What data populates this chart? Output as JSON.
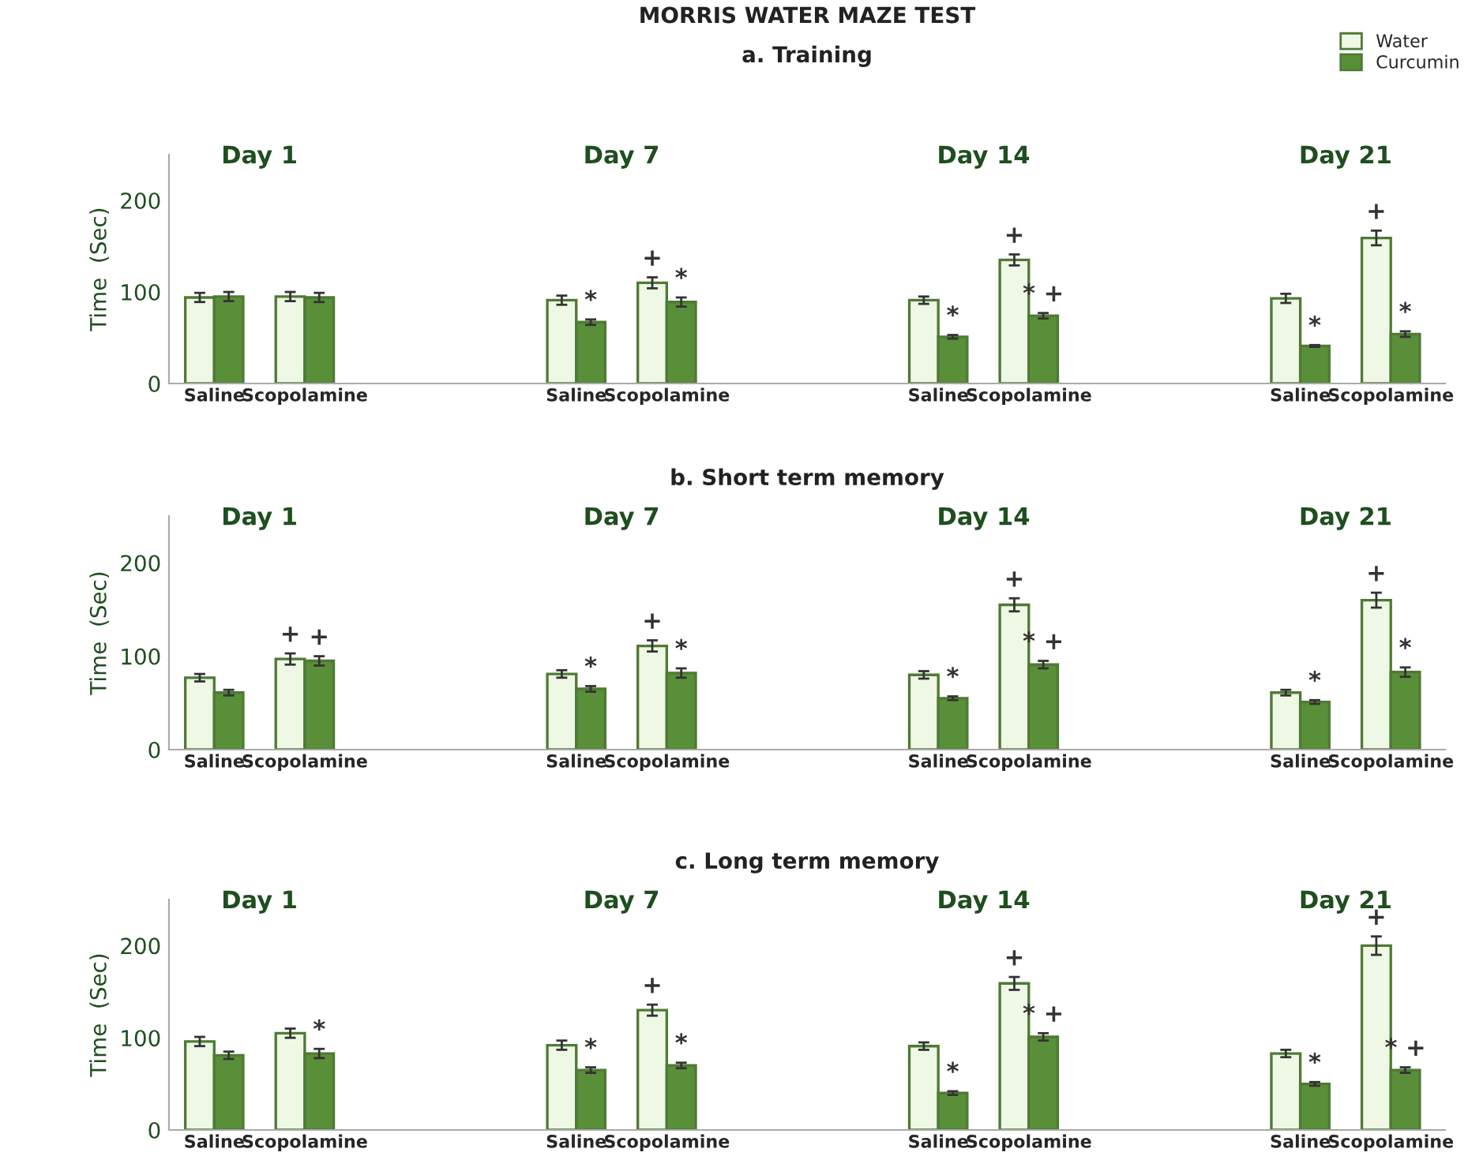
{
  "chart_data": [
    {
      "type": "bar",
      "title": "MORRIS WATER MAZE TEST",
      "subtitle": "a. Training",
      "ylabel": "Time  (Sec)",
      "legend": "top right",
      "ylim": [
        0,
        250
      ],
      "yticks": [
        0,
        100,
        200
      ],
      "categories": [
        "Saline",
        "Scopolamine",
        null,
        null,
        "Saline",
        "Scopolamine",
        null,
        null,
        "Saline",
        "Scopolamine",
        null,
        null,
        "Saline",
        "Scopolamine"
      ],
      "series": [
        {
          "name": "Water",
          "color": "#eef8e4",
          "values": [
            94,
            95,
            null,
            null,
            91,
            110,
            null,
            null,
            91,
            135,
            null,
            null,
            93,
            159
          ],
          "errors": [
            5,
            5,
            null,
            null,
            5,
            6,
            null,
            null,
            4,
            6,
            null,
            null,
            5,
            8
          ],
          "value_labels": [
            null,
            null,
            null,
            null,
            null,
            "+",
            null,
            null,
            null,
            "+",
            null,
            null,
            null,
            "+"
          ]
        },
        {
          "name": "Curcumin",
          "color": "#5a8f3a",
          "values": [
            95,
            94,
            null,
            null,
            67,
            89,
            null,
            null,
            51,
            74,
            null,
            null,
            41,
            54
          ],
          "errors": [
            5,
            5,
            null,
            null,
            3,
            5,
            null,
            null,
            2,
            3,
            null,
            null,
            1,
            3
          ],
          "value_labels": [
            null,
            null,
            null,
            null,
            "*",
            "*",
            null,
            null,
            "*",
            "* +",
            null,
            null,
            "*",
            "*"
          ]
        }
      ],
      "annotations": [
        "Day 1",
        "Day 7",
        "Day 14",
        "Day 21"
      ]
    },
    {
      "type": "bar",
      "title": "b. Short term memory",
      "ylabel": "Time  (Sec)",
      "ylim": [
        0,
        250
      ],
      "yticks": [
        0,
        100,
        200
      ],
      "categories": [
        "Saline",
        "Scopolamine",
        null,
        null,
        "Saline",
        "Scopolamine",
        null,
        null,
        "Saline",
        "Scopolamine",
        null,
        null,
        "Saline",
        "Scopolamine"
      ],
      "series": [
        {
          "color": "#eef8e4",
          "values": [
            77,
            97,
            null,
            null,
            81,
            111,
            null,
            null,
            80,
            155,
            null,
            null,
            61,
            160
          ],
          "errors": [
            4,
            6,
            null,
            null,
            4,
            6,
            null,
            null,
            4,
            7,
            null,
            null,
            3,
            8
          ],
          "value_labels": [
            null,
            "+",
            null,
            null,
            null,
            "+",
            null,
            null,
            null,
            "+",
            null,
            null,
            null,
            "+"
          ]
        },
        {
          "color": "#5a8f3a",
          "values": [
            61,
            95,
            null,
            null,
            65,
            82,
            null,
            null,
            55,
            91,
            null,
            null,
            51,
            83
          ],
          "errors": [
            3,
            5,
            null,
            null,
            3,
            5,
            null,
            null,
            2,
            4,
            null,
            null,
            2,
            5
          ],
          "value_labels": [
            null,
            "+",
            null,
            null,
            "*",
            "*",
            null,
            null,
            "*",
            "* +",
            null,
            null,
            "*",
            "*"
          ]
        }
      ],
      "annotations": [
        "Day 1",
        "Day 7",
        "Day 14",
        "Day 21"
      ]
    },
    {
      "type": "bar",
      "title": "c. Long term memory",
      "ylabel": "Time  (Sec)",
      "ylim": [
        0,
        250
      ],
      "yticks": [
        0,
        100,
        200
      ],
      "categories": [
        "Saline",
        "Scopolamine",
        null,
        null,
        "Saline",
        "Scopolamine",
        null,
        null,
        "Saline",
        "Scopolamine",
        null,
        null,
        "Saline",
        "Scopolamine"
      ],
      "series": [
        {
          "color": "#eef8e4",
          "values": [
            96,
            105,
            null,
            null,
            92,
            130,
            null,
            null,
            91,
            159,
            null,
            null,
            83,
            200
          ],
          "errors": [
            5,
            5,
            null,
            null,
            5,
            6,
            null,
            null,
            4,
            7,
            null,
            null,
            4,
            10
          ],
          "value_labels": [
            null,
            null,
            null,
            null,
            null,
            "+",
            null,
            null,
            null,
            "+",
            null,
            null,
            null,
            "+"
          ]
        },
        {
          "color": "#5a8f3a",
          "values": [
            81,
            83,
            null,
            null,
            65,
            70,
            null,
            null,
            40,
            101,
            null,
            null,
            50,
            65
          ],
          "errors": [
            4,
            5,
            null,
            null,
            3,
            3,
            null,
            null,
            2,
            4,
            null,
            null,
            2,
            3
          ],
          "value_labels": [
            null,
            "*",
            null,
            null,
            "*",
            "*",
            null,
            null,
            "*",
            "* +",
            null,
            null,
            "*",
            "* +"
          ]
        }
      ],
      "annotations": [
        "Day 1",
        "Day 7",
        "Day 14",
        "Day 21"
      ]
    }
  ]
}
